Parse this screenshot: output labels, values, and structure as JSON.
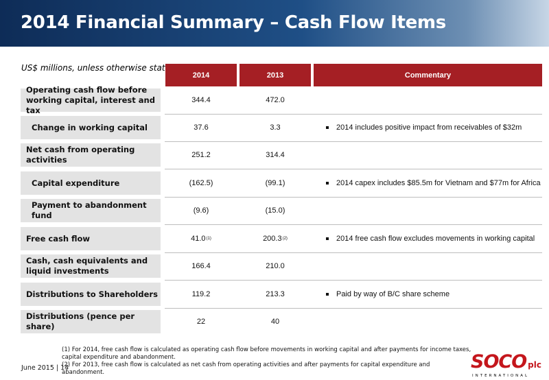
{
  "title": "2014 Financial Summary – Cash Flow Items",
  "subtitle": "US$ millions, unless otherwise stated",
  "columns": {
    "y2014": "2014",
    "y2013": "2013",
    "commentary": "Commentary"
  },
  "rows": [
    {
      "label": "Operating cash flow before working capital, interest and tax",
      "v2014": "344.4",
      "v2013": "472.0",
      "comment": ""
    },
    {
      "label": "Change in working capital",
      "v2014": "37.6",
      "v2013": "3.3",
      "comment": "2014 includes positive impact from receivables of $32m"
    },
    {
      "label": "Net cash from operating activities",
      "v2014": "251.2",
      "v2013": "314.4",
      "comment": ""
    },
    {
      "label": "Capital expenditure",
      "v2014": "(162.5)",
      "v2013": "(99.1)",
      "comment": "2014 capex includes $85.5m for Vietnam and $77m for Africa"
    },
    {
      "label": "Payment to abandonment fund",
      "v2014": "(9.6)",
      "v2013": "(15.0)",
      "comment": ""
    },
    {
      "label": "Free cash flow",
      "v2014": "41.0",
      "v2014_sup": "(1)",
      "v2013": "200.3",
      "v2013_sup": "(2)",
      "comment": "2014 free cash flow excludes movements in working capital"
    },
    {
      "label": "Cash, cash equivalents and liquid investments",
      "v2014": "166.4",
      "v2013": "210.0",
      "comment": ""
    },
    {
      "label": "Distributions to Shareholders",
      "v2014": "119.2",
      "v2013": "213.3",
      "comment": "Paid by way of B/C share scheme"
    },
    {
      "label": "Distributions (pence per share)",
      "v2014": "22",
      "v2013": "40",
      "comment": ""
    }
  ],
  "notes": [
    "(1)  For 2014, free cash flow is calculated as operating cash flow before movements in working capital and after payments for income taxes, capital expenditure and abandonment.",
    "(2)  For 2013, free cash flow is calculated as net cash from operating activities and after payments for capital expenditure and abandonment."
  ],
  "footer": "June 2015 | 14",
  "logo": {
    "main": "SOCO",
    "suffix": "plc",
    "sub": "INTERNATIONAL",
    "color": "#c4161c"
  },
  "colors": {
    "header_dark": "#0e2c57",
    "accent_red": "#a51f24",
    "label_bg": "#e3e3e3"
  }
}
